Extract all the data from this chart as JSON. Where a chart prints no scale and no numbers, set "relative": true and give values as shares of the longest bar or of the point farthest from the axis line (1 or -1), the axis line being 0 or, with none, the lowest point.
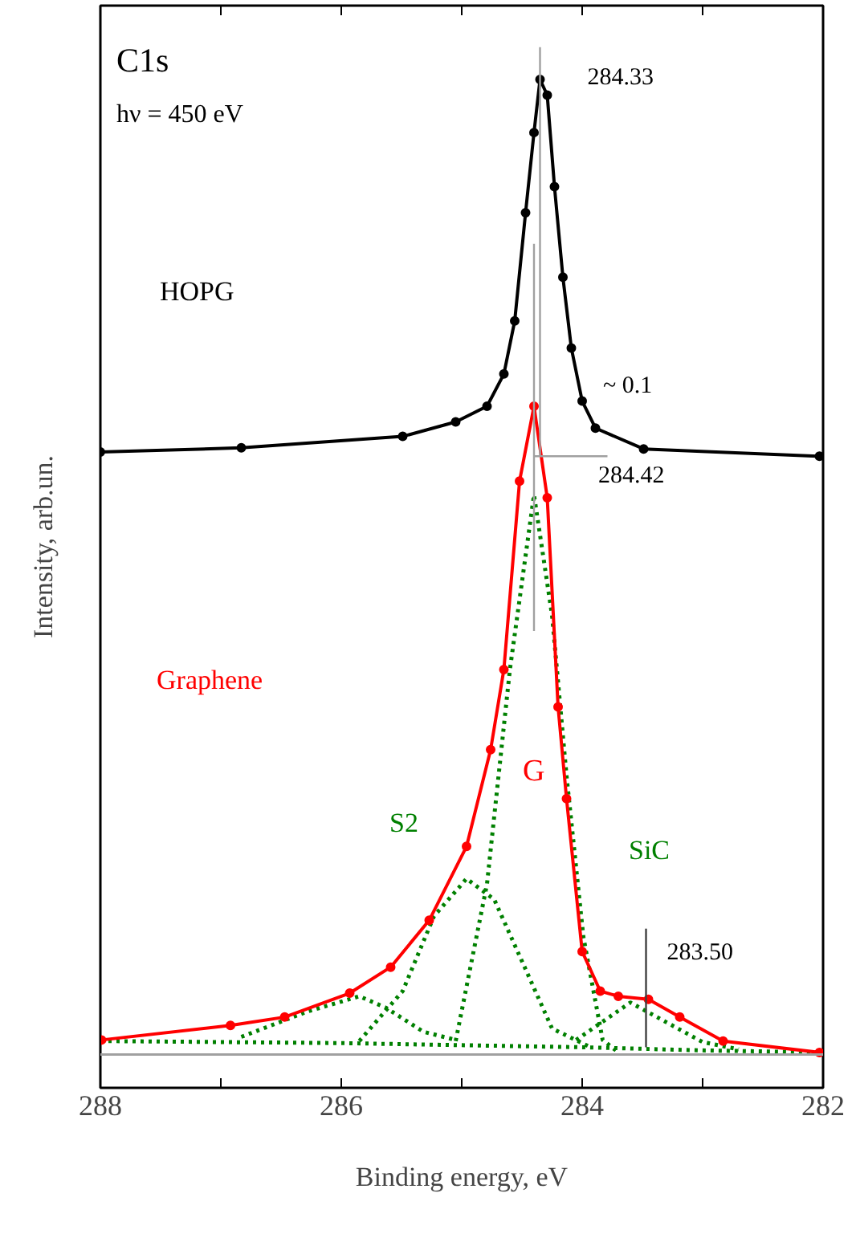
{
  "chart_data": {
    "type": "line",
    "relative": true,
    "xlabel": "Binding energy, eV",
    "ylabel": "Intensity, arb.un.",
    "xlim": [
      288,
      282
    ],
    "xticks": [
      288,
      {
        "value": 287,
        "label": null
      },
      286,
      {
        "value": 285,
        "label": null
      },
      284,
      {
        "value": 283,
        "label": null
      },
      282
    ],
    "grid": false,
    "tick_labels": "x",
    "series": [
      {
        "name": "HOPG",
        "color": "#000000",
        "marker": "circle",
        "line_style": "solid",
        "x": [
          288.0,
          286.83,
          285.49,
          285.05,
          284.79,
          284.65,
          284.56,
          284.47,
          284.4,
          284.35,
          284.29,
          284.23,
          284.16,
          284.09,
          284.0,
          283.89,
          283.49,
          282.03
        ],
        "values": [
          0.611,
          0.615,
          0.626,
          0.64,
          0.655,
          0.686,
          0.737,
          0.841,
          0.918,
          0.969,
          0.954,
          0.866,
          0.779,
          0.711,
          0.66,
          0.634,
          0.614,
          0.607
        ]
      },
      {
        "color": "#008000",
        "marker": "none",
        "line_style": "dotted",
        "x": [
          288,
          286,
          285,
          284,
          283,
          282
        ],
        "values": [
          0.045,
          0.043,
          0.041,
          0.039,
          0.036,
          0.034
        ]
      },
      {
        "color": "#008000",
        "marker": "none",
        "line_style": "dotted",
        "x": [
          286.83,
          286.29,
          285.85,
          285.63,
          285.32,
          285.05
        ],
        "values": [
          0.049,
          0.073,
          0.088,
          0.077,
          0.054,
          0.046
        ]
      },
      {
        "color": "#008000",
        "marker": "none",
        "line_style": "dotted",
        "x": [
          285.85,
          285.49,
          285.23,
          284.96,
          284.73,
          284.47,
          284.25,
          283.93
        ],
        "values": [
          0.045,
          0.093,
          0.165,
          0.201,
          0.181,
          0.114,
          0.057,
          0.039
        ]
      },
      {
        "color": "#008000",
        "marker": "none",
        "line_style": "dotted",
        "x": [
          285.05,
          284.79,
          284.6,
          284.4,
          284.25,
          284.13,
          283.99,
          283.83,
          283.72
        ],
        "values": [
          0.045,
          0.196,
          0.402,
          0.57,
          0.454,
          0.3,
          0.145,
          0.046,
          0.036
        ]
      },
      {
        "color": "#008000",
        "marker": "none",
        "line_style": "dotted",
        "x": [
          284.05,
          283.85,
          283.6,
          283.3,
          283.0,
          282.7
        ],
        "values": [
          0.046,
          0.062,
          0.082,
          0.063,
          0.044,
          0.037
        ]
      },
      {
        "name": "Graphene",
        "color": "#ff0000",
        "marker": "circle",
        "line_style": "solid",
        "x": [
          287.99,
          286.92,
          286.47,
          285.93,
          285.59,
          285.27,
          284.96,
          284.76,
          284.65,
          284.52,
          284.4,
          284.29,
          284.2,
          284.13,
          284.0,
          283.85,
          283.7,
          283.45,
          283.19,
          282.83,
          282.03
        ],
        "values": [
          0.046,
          0.06,
          0.068,
          0.091,
          0.116,
          0.161,
          0.232,
          0.325,
          0.402,
          0.583,
          0.655,
          0.567,
          0.366,
          0.278,
          0.131,
          0.093,
          0.088,
          0.085,
          0.068,
          0.045,
          0.034
        ]
      },
      {
        "color": "#a0a0a0",
        "marker": "none",
        "line_style": "solid",
        "x": [
          284.35,
          284.35
        ],
        "values": [
          1.0,
          0.607
        ]
      },
      {
        "color": "#a0a0a0",
        "marker": "none",
        "line_style": "solid",
        "x": [
          284.4,
          283.79
        ],
        "values": [
          0.607,
          0.607
        ]
      },
      {
        "color": "#a0a0a0",
        "marker": "none",
        "line_style": "solid",
        "x": [
          284.4,
          284.4
        ],
        "values": [
          0.811,
          0.439
        ]
      },
      {
        "color": "#404040",
        "marker": "none",
        "line_style": "solid",
        "x": [
          283.47,
          283.47
        ],
        "values": [
          0.153,
          0.039
        ]
      }
    ],
    "ref_lines": [
      {
        "axis": "y",
        "value": 0.032,
        "color": "#a0a0a0"
      }
    ],
    "annotations": [
      "C1s",
      "hν = 450 eV",
      "G",
      "S2",
      "SiC",
      "~ 0.1",
      "284.42",
      {
        "text": "284.33",
        "x": 284.33,
        "y": 0.969
      },
      {
        "text": "283.50",
        "x": 283.47,
        "y": 0.153
      }
    ]
  }
}
